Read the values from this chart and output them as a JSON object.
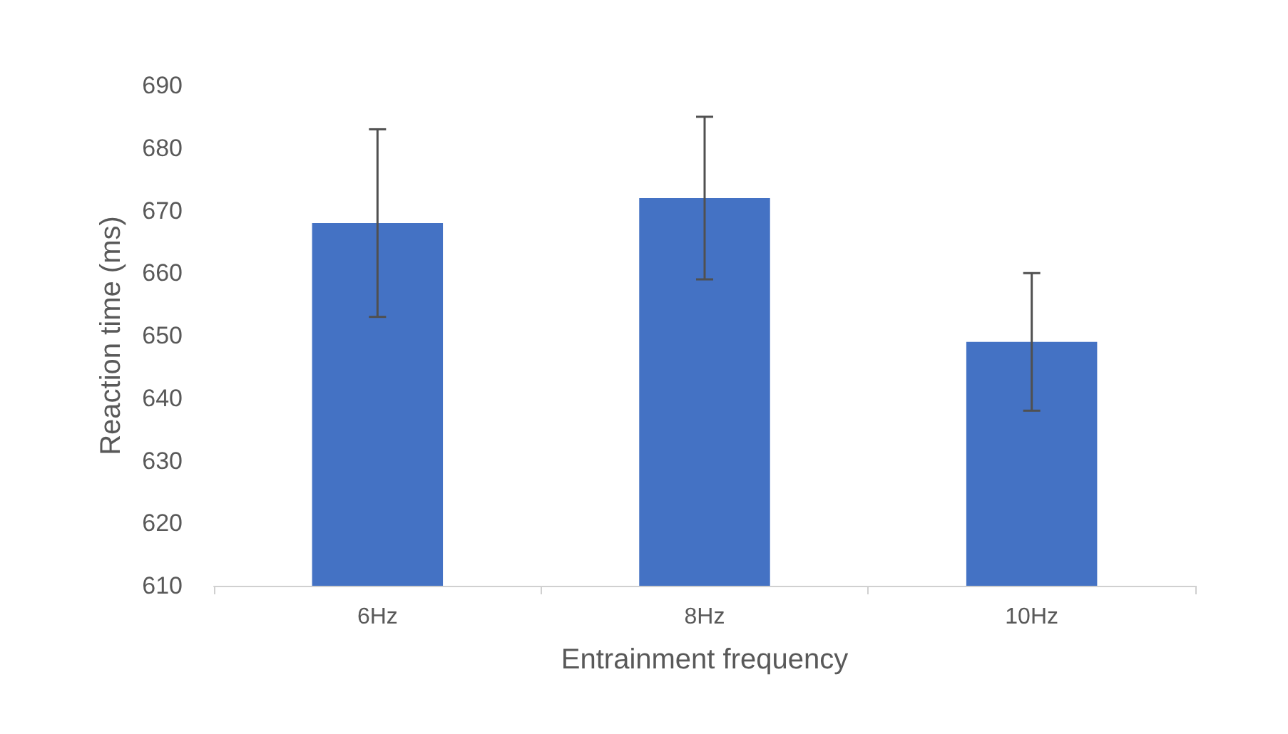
{
  "chart_data": {
    "type": "bar",
    "xlabel": "Entrainment frequency",
    "ylabel": "Reaction time (ms)",
    "categories": [
      "6Hz",
      "8Hz",
      "10Hz"
    ],
    "values": [
      668,
      672,
      649
    ],
    "errors": [
      15,
      13,
      11
    ],
    "color": "#4472c4",
    "ylim": [
      610,
      690
    ],
    "yticks": [
      610,
      620,
      630,
      640,
      650,
      660,
      670,
      680,
      690
    ],
    "grid": false
  }
}
